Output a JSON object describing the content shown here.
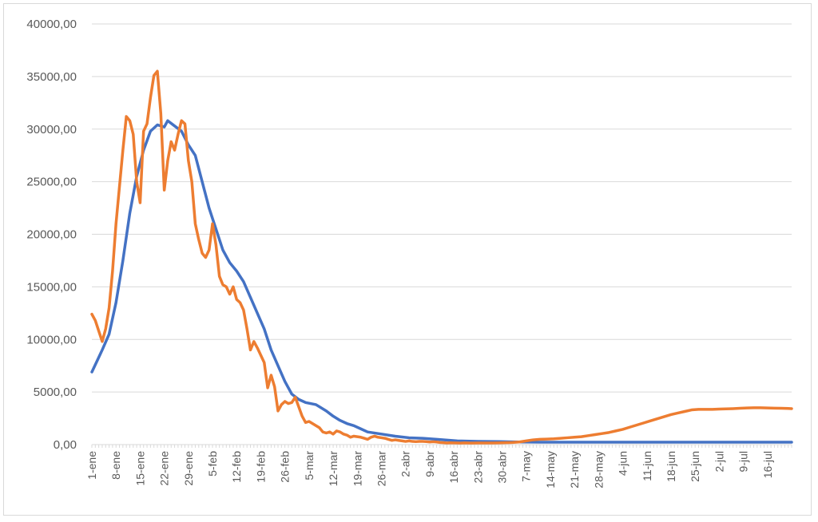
{
  "chart_data": {
    "type": "line",
    "title": "",
    "xlabel": "",
    "ylabel": "",
    "ylim": [
      0,
      40000
    ],
    "yticks": [
      "0,00",
      "5000,00",
      "10000,00",
      "15000,00",
      "20000,00",
      "25000,00",
      "30000,00",
      "35000,00",
      "40000,00"
    ],
    "ytick_values": [
      0,
      5000,
      10000,
      15000,
      20000,
      25000,
      30000,
      35000,
      40000
    ],
    "x_tick_labels": [
      "1-ene",
      "8-ene",
      "15-ene",
      "22-ene",
      "29-ene",
      "5-feb",
      "12-feb",
      "19-feb",
      "26-feb",
      "5-mar",
      "12-mar",
      "19-mar",
      "26-mar",
      "2-abr",
      "9-abr",
      "16-abr",
      "23-abr",
      "30-abr",
      "7-may",
      "14-may",
      "21-may",
      "28-may",
      "4-jun",
      "11-jun",
      "18-jun",
      "25-jun",
      "2-jul",
      "9-jul",
      "16-jul"
    ],
    "x_count": 204,
    "grid": true,
    "legend": "none",
    "series": [
      {
        "color": "#4472c4",
        "points": [
          [
            0,
            6900
          ],
          [
            3,
            9000
          ],
          [
            5,
            10500
          ],
          [
            7,
            13500
          ],
          [
            9,
            17500
          ],
          [
            11,
            22000
          ],
          [
            13,
            25500
          ],
          [
            15,
            28000
          ],
          [
            17,
            29800
          ],
          [
            19,
            30400
          ],
          [
            21,
            30200
          ],
          [
            22,
            30800
          ],
          [
            24,
            30300
          ],
          [
            26,
            29800
          ],
          [
            28,
            28500
          ],
          [
            30,
            27500
          ],
          [
            32,
            25000
          ],
          [
            34,
            22500
          ],
          [
            36,
            20500
          ],
          [
            38,
            18500
          ],
          [
            40,
            17300
          ],
          [
            42,
            16500
          ],
          [
            44,
            15500
          ],
          [
            46,
            14000
          ],
          [
            48,
            12500
          ],
          [
            50,
            11000
          ],
          [
            52,
            9000
          ],
          [
            54,
            7500
          ],
          [
            56,
            6000
          ],
          [
            58,
            4800
          ],
          [
            60,
            4300
          ],
          [
            62,
            4000
          ],
          [
            65,
            3800
          ],
          [
            68,
            3200
          ],
          [
            70,
            2700
          ],
          [
            72,
            2300
          ],
          [
            74,
            2000
          ],
          [
            76,
            1800
          ],
          [
            78,
            1500
          ],
          [
            80,
            1200
          ],
          [
            84,
            1000
          ],
          [
            88,
            800
          ],
          [
            92,
            650
          ],
          [
            96,
            600
          ],
          [
            100,
            500
          ],
          [
            106,
            350
          ],
          [
            112,
            300
          ],
          [
            118,
            280
          ],
          [
            124,
            250
          ],
          [
            130,
            230
          ],
          [
            140,
            230
          ],
          [
            150,
            230
          ],
          [
            160,
            230
          ],
          [
            170,
            230
          ],
          [
            180,
            230
          ],
          [
            190,
            230
          ],
          [
            203,
            230
          ]
        ]
      },
      {
        "color": "#ed7d31",
        "points": [
          [
            0,
            12400
          ],
          [
            1,
            11800
          ],
          [
            2,
            10800
          ],
          [
            3,
            9800
          ],
          [
            4,
            11000
          ],
          [
            5,
            13000
          ],
          [
            6,
            16500
          ],
          [
            7,
            21000
          ],
          [
            8,
            24500
          ],
          [
            9,
            28000
          ],
          [
            10,
            31200
          ],
          [
            11,
            30800
          ],
          [
            12,
            29500
          ],
          [
            13,
            25000
          ],
          [
            14,
            23000
          ],
          [
            15,
            29800
          ],
          [
            16,
            30500
          ],
          [
            17,
            33000
          ],
          [
            18,
            35100
          ],
          [
            19,
            35500
          ],
          [
            20,
            31500
          ],
          [
            21,
            24200
          ],
          [
            22,
            27000
          ],
          [
            23,
            28800
          ],
          [
            24,
            28000
          ],
          [
            25,
            29500
          ],
          [
            26,
            30800
          ],
          [
            27,
            30500
          ],
          [
            28,
            27000
          ],
          [
            29,
            25000
          ],
          [
            30,
            21000
          ],
          [
            31,
            19500
          ],
          [
            32,
            18200
          ],
          [
            33,
            17800
          ],
          [
            34,
            18500
          ],
          [
            35,
            21000
          ],
          [
            36,
            19000
          ],
          [
            37,
            16000
          ],
          [
            38,
            15200
          ],
          [
            39,
            15000
          ],
          [
            40,
            14300
          ],
          [
            41,
            15000
          ],
          [
            42,
            13800
          ],
          [
            43,
            13500
          ],
          [
            44,
            12800
          ],
          [
            45,
            11000
          ],
          [
            46,
            9000
          ],
          [
            47,
            9800
          ],
          [
            48,
            9200
          ],
          [
            49,
            8500
          ],
          [
            50,
            7800
          ],
          [
            51,
            5400
          ],
          [
            52,
            6600
          ],
          [
            53,
            5500
          ],
          [
            54,
            3200
          ],
          [
            55,
            3800
          ],
          [
            56,
            4100
          ],
          [
            57,
            3900
          ],
          [
            58,
            4000
          ],
          [
            59,
            4500
          ],
          [
            60,
            3600
          ],
          [
            61,
            2700
          ],
          [
            62,
            2100
          ],
          [
            63,
            2200
          ],
          [
            64,
            2000
          ],
          [
            65,
            1800
          ],
          [
            66,
            1600
          ],
          [
            67,
            1200
          ],
          [
            68,
            1100
          ],
          [
            69,
            1200
          ],
          [
            70,
            1000
          ],
          [
            71,
            1300
          ],
          [
            72,
            1200
          ],
          [
            73,
            1000
          ],
          [
            74,
            900
          ],
          [
            75,
            700
          ],
          [
            76,
            800
          ],
          [
            77,
            750
          ],
          [
            78,
            700
          ],
          [
            79,
            600
          ],
          [
            80,
            500
          ],
          [
            81,
            700
          ],
          [
            82,
            800
          ],
          [
            83,
            700
          ],
          [
            84,
            650
          ],
          [
            85,
            600
          ],
          [
            86,
            500
          ],
          [
            87,
            400
          ],
          [
            88,
            450
          ],
          [
            89,
            400
          ],
          [
            90,
            350
          ],
          [
            91,
            300
          ],
          [
            92,
            350
          ],
          [
            93,
            300
          ],
          [
            94,
            280
          ],
          [
            95,
            300
          ],
          [
            96,
            300
          ],
          [
            97,
            280
          ],
          [
            98,
            250
          ],
          [
            99,
            270
          ],
          [
            100,
            250
          ],
          [
            101,
            200
          ],
          [
            102,
            180
          ],
          [
            103,
            150
          ],
          [
            104,
            170
          ],
          [
            105,
            160
          ],
          [
            106,
            150
          ],
          [
            107,
            140
          ],
          [
            108,
            160
          ],
          [
            109,
            150
          ],
          [
            110,
            140
          ],
          [
            112,
            150
          ],
          [
            114,
            150
          ],
          [
            116,
            150
          ],
          [
            118,
            160
          ],
          [
            120,
            180
          ],
          [
            122,
            200
          ],
          [
            124,
            250
          ],
          [
            126,
            350
          ],
          [
            128,
            450
          ],
          [
            130,
            500
          ],
          [
            132,
            520
          ],
          [
            134,
            550
          ],
          [
            136,
            600
          ],
          [
            138,
            650
          ],
          [
            140,
            700
          ],
          [
            142,
            750
          ],
          [
            144,
            850
          ],
          [
            146,
            950
          ],
          [
            148,
            1050
          ],
          [
            150,
            1150
          ],
          [
            152,
            1300
          ],
          [
            154,
            1450
          ],
          [
            156,
            1650
          ],
          [
            158,
            1850
          ],
          [
            160,
            2050
          ],
          [
            162,
            2250
          ],
          [
            164,
            2450
          ],
          [
            166,
            2650
          ],
          [
            168,
            2850
          ],
          [
            170,
            3000
          ],
          [
            172,
            3150
          ],
          [
            174,
            3300
          ],
          [
            176,
            3350
          ],
          [
            178,
            3350
          ],
          [
            180,
            3350
          ],
          [
            182,
            3380
          ],
          [
            184,
            3400
          ],
          [
            186,
            3420
          ],
          [
            188,
            3450
          ],
          [
            190,
            3480
          ],
          [
            192,
            3500
          ],
          [
            194,
            3500
          ],
          [
            196,
            3480
          ],
          [
            198,
            3460
          ],
          [
            200,
            3450
          ],
          [
            202,
            3430
          ],
          [
            203,
            3420
          ]
        ]
      }
    ]
  }
}
